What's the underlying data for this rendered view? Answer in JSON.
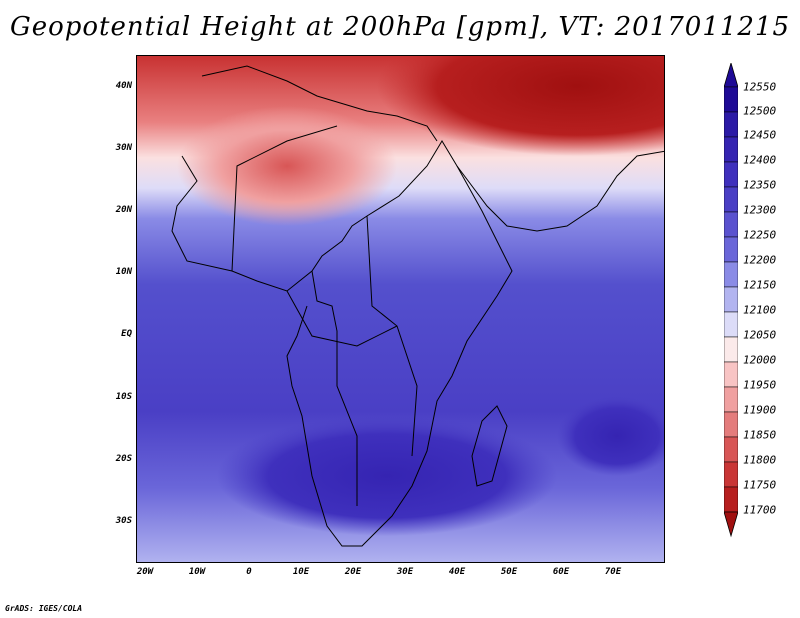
{
  "title": "Geopotential Height at 200hPa [gpm], VT: 2017011215",
  "footer": "GrADS: IGES/COLA",
  "map": {
    "lat_labels": [
      "40N",
      "30N",
      "20N",
      "10N",
      "EQ",
      "10S",
      "20S",
      "30S"
    ],
    "lon_labels": [
      "20W",
      "10W",
      "0",
      "10E",
      "20E",
      "30E",
      "40E",
      "50E",
      "60E",
      "70E"
    ]
  },
  "colorbar": {
    "labels": [
      "12550",
      "12500",
      "12450",
      "12400",
      "12350",
      "12300",
      "12250",
      "12200",
      "12150",
      "12100",
      "12050",
      "12000",
      "11950",
      "11900",
      "11850",
      "11800",
      "11750",
      "11700"
    ],
    "colors": [
      "#1e0a96",
      "#2b1aa6",
      "#3524b2",
      "#3f30bd",
      "#4a3fc5",
      "#5a52cf",
      "#6a66d9",
      "#8a8be6",
      "#b2b4f0",
      "#dcdcf8",
      "#fbeaea",
      "#f8c4c4",
      "#f0a0a0",
      "#e47c7c",
      "#d85656",
      "#c93636",
      "#b71f1f",
      "#a01010"
    ],
    "min_color": "#a01010",
    "max_color": "#1e0a96"
  }
}
